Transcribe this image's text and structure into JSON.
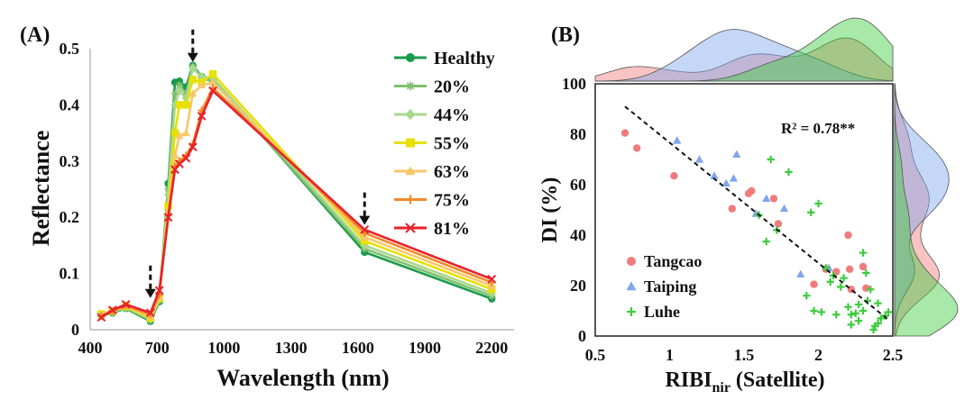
{
  "chart_data": [
    {
      "panel_label": "(A)",
      "type": "line",
      "xlabel": "Wavelength (nm)",
      "ylabel": "Reflectance",
      "xlim": [
        400,
        2300
      ],
      "ylim": [
        0,
        0.5
      ],
      "x_ticks": [
        400,
        700,
        1000,
        1300,
        1600,
        1900,
        2200
      ],
      "y_ticks": [
        0,
        0.1,
        0.2,
        0.3,
        0.4,
        0.5
      ],
      "y_tick_labels": [
        "0",
        "0.1",
        "0.2",
        "0.3",
        "0.4",
        "0.5"
      ],
      "arrow_positions_nm": [
        670,
        860,
        1630
      ],
      "series": [
        {
          "name": "Healthy",
          "color": "#1a9b4b",
          "marker": "circle",
          "x": [
            450,
            500,
            560,
            670,
            710,
            750,
            780,
            800,
            830,
            860,
            900,
            950,
            1630,
            2200
          ],
          "y": [
            0.025,
            0.03,
            0.038,
            0.015,
            0.05,
            0.26,
            0.44,
            0.442,
            0.432,
            0.47,
            0.45,
            0.445,
            0.138,
            0.055
          ]
        },
        {
          "name": "20%",
          "color": "#80c070",
          "marker": "star",
          "x": [
            450,
            500,
            560,
            670,
            710,
            750,
            780,
            800,
            830,
            860,
            900,
            950,
            1630,
            2200
          ],
          "y": [
            0.026,
            0.031,
            0.039,
            0.017,
            0.052,
            0.25,
            0.42,
            0.435,
            0.42,
            0.468,
            0.447,
            0.442,
            0.144,
            0.06
          ]
        },
        {
          "name": "44%",
          "color": "#a8d890",
          "marker": "diamond",
          "x": [
            450,
            500,
            560,
            670,
            710,
            750,
            780,
            800,
            830,
            860,
            900,
            950,
            1630,
            2200
          ],
          "y": [
            0.027,
            0.032,
            0.04,
            0.019,
            0.054,
            0.24,
            0.4,
            0.425,
            0.412,
            0.465,
            0.45,
            0.448,
            0.15,
            0.065
          ]
        },
        {
          "name": "55%",
          "color": "#e8e000",
          "marker": "square",
          "x": [
            450,
            500,
            560,
            670,
            710,
            750,
            780,
            800,
            830,
            860,
            900,
            950,
            1630,
            2200
          ],
          "y": [
            0.028,
            0.033,
            0.041,
            0.021,
            0.056,
            0.22,
            0.35,
            0.4,
            0.4,
            0.445,
            0.44,
            0.455,
            0.158,
            0.072
          ]
        },
        {
          "name": "63%",
          "color": "#f6c86a",
          "marker": "triangle",
          "x": [
            450,
            500,
            560,
            670,
            710,
            750,
            780,
            800,
            830,
            860,
            900,
            950,
            1630,
            2200
          ],
          "y": [
            0.028,
            0.034,
            0.042,
            0.024,
            0.058,
            0.21,
            0.31,
            0.345,
            0.35,
            0.42,
            0.435,
            0.44,
            0.165,
            0.078
          ]
        },
        {
          "name": "75%",
          "color": "#f08a2a",
          "marker": "plus",
          "x": [
            450,
            500,
            560,
            670,
            710,
            750,
            780,
            800,
            830,
            860,
            900,
            950,
            1630,
            2200
          ],
          "y": [
            0.024,
            0.033,
            0.043,
            0.027,
            0.062,
            0.205,
            0.29,
            0.3,
            0.31,
            0.33,
            0.39,
            0.43,
            0.172,
            0.084
          ]
        },
        {
          "name": "81%",
          "color": "#e8222a",
          "marker": "x",
          "x": [
            450,
            500,
            560,
            670,
            710,
            750,
            780,
            800,
            830,
            860,
            900,
            950,
            1630,
            2200
          ],
          "y": [
            0.022,
            0.035,
            0.045,
            0.03,
            0.07,
            0.2,
            0.285,
            0.295,
            0.305,
            0.325,
            0.38,
            0.425,
            0.178,
            0.09
          ]
        }
      ]
    },
    {
      "panel_label": "(B)",
      "type": "scatter",
      "xlabel_main": "RIBI",
      "xlabel_sub": "nir",
      "xlabel_tail": " (Satellite)",
      "ylabel": "DI (%)",
      "xlim": [
        0.5,
        2.5
      ],
      "ylim": [
        0,
        100
      ],
      "x_ticks": [
        0.5,
        1,
        1.5,
        2,
        2.5
      ],
      "x_tick_labels": [
        "0.5",
        "1",
        "1.5",
        "2",
        "2.5"
      ],
      "y_ticks": [
        0,
        20,
        40,
        60,
        80,
        100
      ],
      "annotation": "R² = 0.78**",
      "fit_line": {
        "x": [
          0.7,
          2.48
        ],
        "y": [
          91,
          6
        ]
      },
      "series": [
        {
          "name": "Tangcao",
          "color": "#f07b7b",
          "marker": "circle",
          "x": [
            0.7,
            0.78,
            1.03,
            1.42,
            1.53,
            1.55,
            1.7,
            1.73,
            1.97,
            2.05,
            2.12,
            2.2,
            2.21,
            2.22,
            2.3,
            2.32
          ],
          "y": [
            80.5,
            74.5,
            63.5,
            50.5,
            56.5,
            57.5,
            54.5,
            44.5,
            20.5,
            26.5,
            25.5,
            40,
            26.5,
            18.5,
            27.5,
            19
          ]
        },
        {
          "name": "Taiping",
          "color": "#7fa6ee",
          "marker": "triangle",
          "x": [
            1.05,
            1.2,
            1.3,
            1.38,
            1.43,
            1.45,
            1.58,
            1.65,
            1.77,
            1.88,
            2.07
          ],
          "y": [
            77.5,
            70,
            63.5,
            60.5,
            62.5,
            72,
            48.5,
            54.5,
            50.5,
            24.5,
            27
          ]
        },
        {
          "name": "Luhe",
          "color": "#3dcc3d",
          "marker": "plus",
          "x": [
            1.6,
            1.65,
            1.68,
            1.72,
            1.8,
            1.92,
            1.95,
            1.97,
            2.0,
            2.02,
            2.05,
            2.08,
            2.1,
            2.12,
            2.15,
            2.2,
            2.22,
            2.25,
            2.27,
            2.3,
            2.32,
            2.35,
            2.38,
            2.4,
            2.42,
            2.45,
            2.47,
            2.3,
            2.27,
            2.33,
            2.37,
            2.4,
            2.22,
            2.17
          ],
          "y": [
            48,
            37.5,
            70,
            42,
            65,
            16,
            49,
            10,
            52.5,
            9.5,
            27,
            21.5,
            24,
            8.5,
            19.5,
            11.5,
            8.5,
            9,
            12.5,
            33,
            25,
            18.5,
            4,
            5,
            7,
            8,
            9.5,
            10,
            6,
            14,
            2.5,
            13,
            4.5,
            23
          ]
        }
      ],
      "top_marginal": "density",
      "right_marginal": "density"
    }
  ],
  "ui": {
    "arrow_glyph": "↓"
  }
}
